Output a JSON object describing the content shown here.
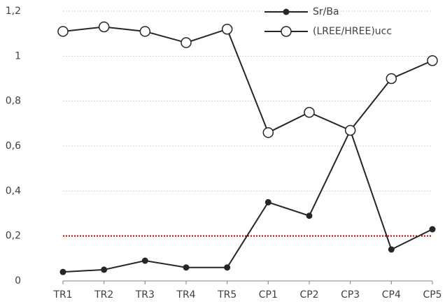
{
  "chart_data": {
    "type": "line",
    "categories": [
      "TR1",
      "TR2",
      "TR3",
      "TR4",
      "TR5",
      "CP1",
      "CP2",
      "CP3",
      "CP4",
      "CP5"
    ],
    "series": [
      {
        "name": "Sr/Ba",
        "color": "#262626",
        "marker": "filled",
        "values": [
          0.04,
          0.05,
          0.09,
          0.06,
          0.06,
          0.35,
          0.29,
          0.67,
          0.14,
          0.23
        ]
      },
      {
        "name": "(LREE/HREE)ucc",
        "color": "#262626",
        "marker": "open",
        "values": [
          1.11,
          1.13,
          1.11,
          1.06,
          1.12,
          0.66,
          0.75,
          0.67,
          0.9,
          0.98
        ]
      }
    ],
    "ylim": [
      0,
      1.2
    ],
    "yticks": [
      0,
      {
        "value": 0.2,
        "label": "0,2"
      },
      {
        "value": 0.4,
        "label": "0,4"
      },
      {
        "value": 0.6,
        "label": "0,6"
      },
      {
        "value": 0.8,
        "label": "0,8"
      },
      1,
      {
        "value": 1.2,
        "label": "1,2"
      }
    ],
    "grid": true,
    "reference_line": {
      "value": 0.2,
      "color": "#c00000"
    },
    "legend": "top-right"
  }
}
